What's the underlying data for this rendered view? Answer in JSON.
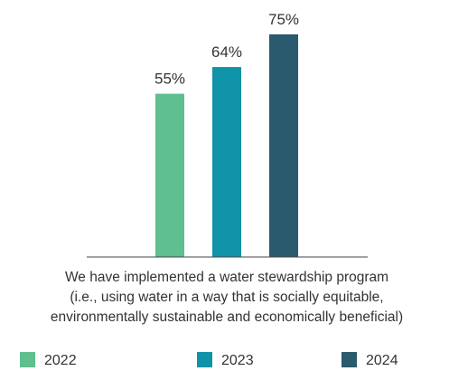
{
  "chart_data": {
    "type": "bar",
    "categories": [
      "We have implemented a water stewardship program (i.e., using water in a way that is socially equitable, environmentally sustainable and economically beneficial)"
    ],
    "category_lines": [
      "We have implemented a water stewardship program",
      "(i.e., using water in a way that is socially equitable,",
      "environmentally sustainable and economically beneficial)"
    ],
    "series": [
      {
        "name": "2022",
        "values": [
          55
        ],
        "color": "#5fbf8f"
      },
      {
        "name": "2023",
        "values": [
          64
        ],
        "color": "#0f93a8"
      },
      {
        "name": "2024",
        "values": [
          75
        ],
        "color": "#2a5a6e"
      }
    ],
    "value_labels": [
      "55%",
      "64%",
      "75%"
    ],
    "value_format": "percent",
    "ylim": [
      0,
      75
    ],
    "grid": false,
    "legend_position": "bottom",
    "title": "",
    "xlabel": "",
    "ylabel": ""
  }
}
